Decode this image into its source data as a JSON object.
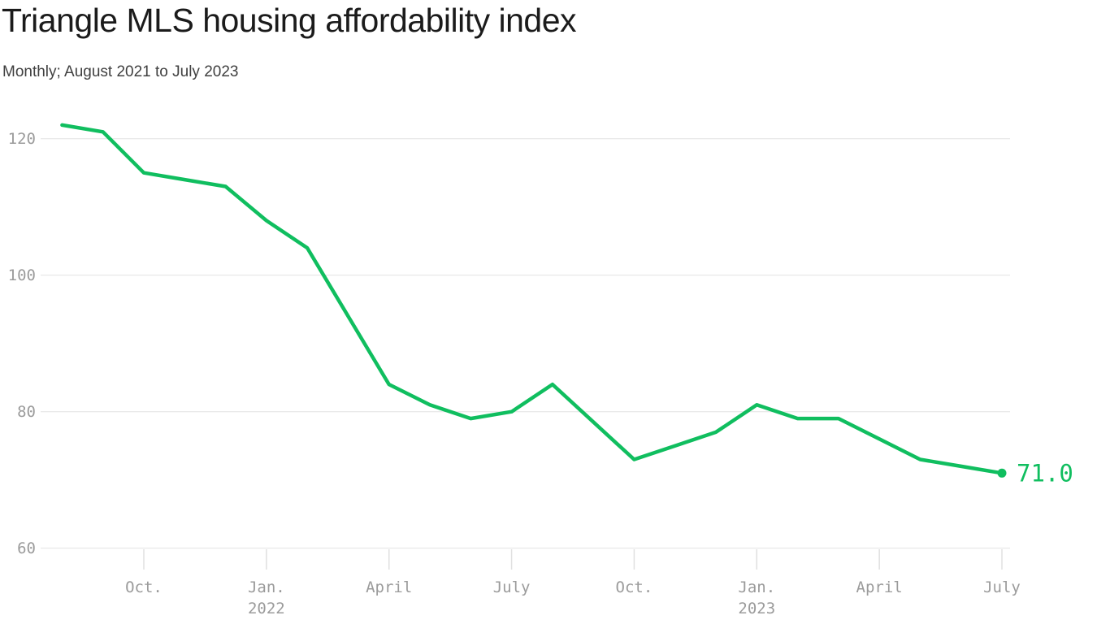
{
  "chart": {
    "title": "Triangle MLS housing affordability index",
    "subtitle": "Monthly; August 2021 to July 2023"
  },
  "colors": {
    "line": "#10be5f",
    "title_text": "#1b1b1b",
    "subtitle_text": "#404040",
    "axis_label": "#9b9b9b",
    "gridline": "#e2e2e2"
  },
  "chart_data": {
    "type": "line",
    "title": "Triangle MLS housing affordability index",
    "subtitle": "Monthly; August 2021 to July 2023",
    "categories": [
      "Aug. 2021",
      "Sept. 2021",
      "Oct. 2021",
      "Nov. 2021",
      "Dec. 2021",
      "Jan. 2022",
      "Feb. 2022",
      "March 2022",
      "April 2022",
      "May 2022",
      "June 2022",
      "July 2022",
      "Aug. 2022",
      "Sept. 2022",
      "Oct. 2022",
      "Nov. 2022",
      "Dec. 2022",
      "Jan. 2023",
      "Feb. 2023",
      "March 2023",
      "April 2023",
      "May 2023",
      "June 2023",
      "July 2023"
    ],
    "values": [
      122,
      121,
      115,
      114,
      113,
      108,
      104,
      94,
      84,
      81,
      79,
      80,
      84,
      78.5,
      73,
      75,
      77,
      81,
      79,
      79,
      76,
      73,
      72,
      71
    ],
    "end_point_label": "71.0",
    "ylabel": "",
    "xlabel": "",
    "ylim": [
      60,
      125
    ],
    "y_ticks": [
      60,
      80,
      100,
      120
    ],
    "x_ticks": [
      {
        "index": 2,
        "label": "Oct.",
        "sublabel": ""
      },
      {
        "index": 5,
        "label": "Jan.",
        "sublabel": "2022"
      },
      {
        "index": 8,
        "label": "April",
        "sublabel": ""
      },
      {
        "index": 11,
        "label": "July",
        "sublabel": ""
      },
      {
        "index": 14,
        "label": "Oct.",
        "sublabel": ""
      },
      {
        "index": 17,
        "label": "Jan.",
        "sublabel": "2023"
      },
      {
        "index": 20,
        "label": "April",
        "sublabel": ""
      },
      {
        "index": 23,
        "label": "July",
        "sublabel": ""
      }
    ],
    "grid": "horizontal-only",
    "legend": "none",
    "line_color": "#10be5f"
  }
}
